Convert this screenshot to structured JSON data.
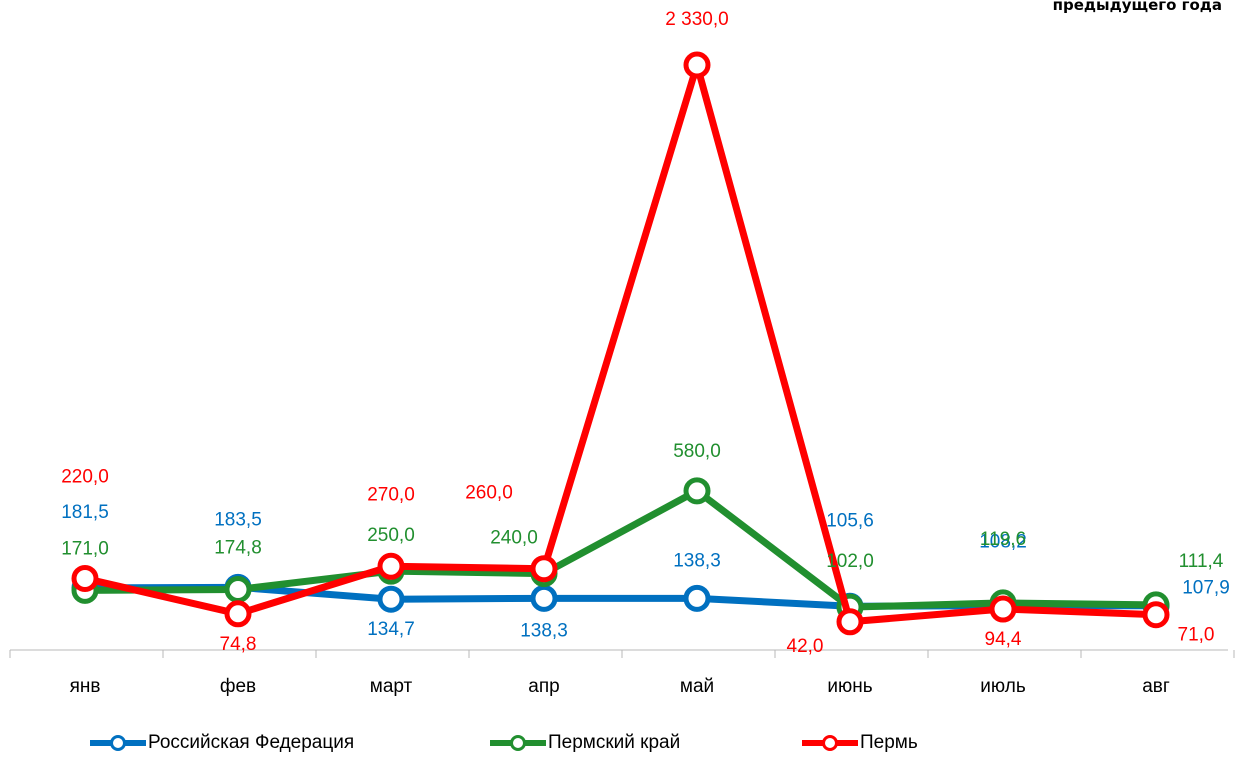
{
  "corner_title": "предыдущего года",
  "chart_data": {
    "type": "line",
    "title": "",
    "xlabel": "",
    "ylabel": "",
    "categories": [
      "янв",
      "фев",
      "март",
      "апр",
      "май",
      "июнь",
      "июль",
      "авг"
    ],
    "series": [
      {
        "name": "Российская Федерация",
        "color": "#0070C0",
        "values": [
          181.5,
          183.5,
          134.7,
          138.3,
          138.3,
          105.6,
          108.2,
          107.9
        ],
        "labels": [
          "181,5",
          "183,5",
          "134,7",
          "138,3",
          "138,3",
          "105,6",
          "108,2",
          "107,9"
        ]
      },
      {
        "name": "Пермский край",
        "color": "#218F2F",
        "values": [
          171.0,
          174.8,
          250.0,
          240.0,
          580.0,
          102.0,
          119.6,
          111.4
        ],
        "labels": [
          "171,0",
          "174,8",
          "250,0",
          "240,0",
          "580,0",
          "102,0",
          "119,6",
          "111,4"
        ]
      },
      {
        "name": "Пермь",
        "color": "#FF0000",
        "values": [
          220.0,
          74.8,
          270.0,
          260.0,
          2330.0,
          42.0,
          94.4,
          71.0
        ],
        "labels": [
          "220,0",
          "74,8",
          "270,0",
          "260,0",
          "2 330,0",
          "42,0",
          "94,4",
          "71,0"
        ]
      }
    ],
    "grid": false,
    "legend": "bottom"
  }
}
